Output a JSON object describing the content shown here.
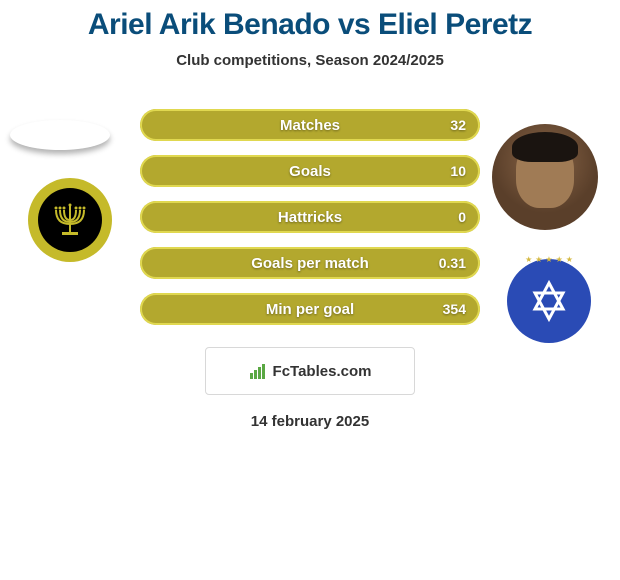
{
  "title_text": "Ariel Arik Benado vs Eliel Peretz",
  "title_color": "#0a4d7a",
  "subtitle_text": "Club competitions, Season 2024/2025",
  "subtitle_color": "#333333",
  "background_color": "#ffffff",
  "stats": {
    "rows": [
      {
        "label": "Matches",
        "right_value": "32"
      },
      {
        "label": "Goals",
        "right_value": "10"
      },
      {
        "label": "Hattricks",
        "right_value": "0"
      },
      {
        "label": "Goals per match",
        "right_value": "0.31"
      },
      {
        "label": "Min per goal",
        "right_value": "354"
      }
    ],
    "row_bg": "#b3a82e",
    "row_border_color": "#e0d850",
    "label_color": "#ffffff",
    "value_color": "#ffffff"
  },
  "left_club": {
    "outer_bg": "#c5ba2a",
    "emblem_color": "#c5ba2a"
  },
  "right_club": {
    "inner_bg": "#2a4bb5",
    "star_color": "#ffffff",
    "arc_star_color": "#d4b840"
  },
  "footer": {
    "brand": "FcTables.com",
    "brand_color": "#333333",
    "icon_color": "#5aa843",
    "date": "14 february 2025",
    "date_color": "#333333"
  }
}
